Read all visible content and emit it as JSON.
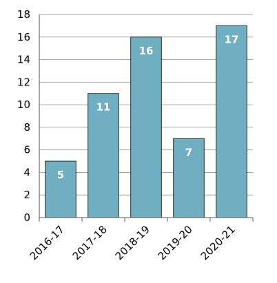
{
  "chart_data": {
    "type": "bar",
    "categories": [
      "2016-17",
      "2017-18",
      "2018-19",
      "2019-20",
      "2020-21"
    ],
    "values": [
      5,
      11,
      16,
      7,
      17
    ],
    "ylim": [
      0,
      18
    ],
    "yticks": [
      0,
      2,
      4,
      6,
      8,
      10,
      12,
      14,
      16,
      18
    ],
    "grid": true,
    "bar_color": "#6fafc1",
    "bar_edge_color": "#2b2b2b",
    "data_label_color": "#ffffff"
  }
}
